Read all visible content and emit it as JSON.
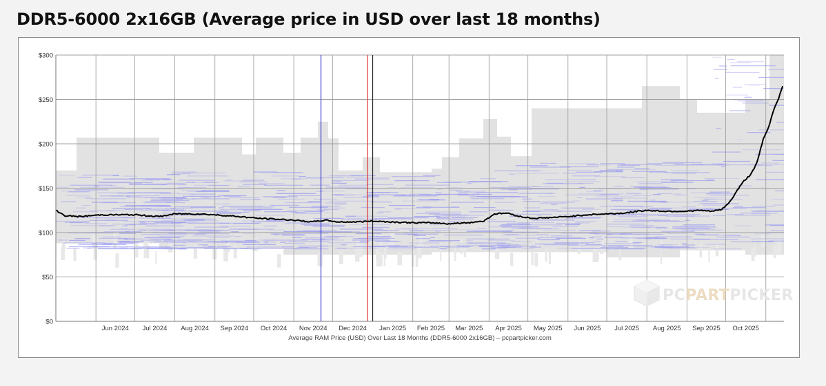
{
  "title": "DDR5-6000 2x16GB (Average price in USD over last 18 months)",
  "chart_data": {
    "type": "line",
    "title": "DDR5-6000 2x16GB (Average price in USD over last 18 months)",
    "xlabel": "Average RAM Price (USD) Over Last 18 Months (DDR5-6000 2x16GB) – pcpartpicker.com",
    "ylabel": "",
    "ylim": [
      0,
      300
    ],
    "y_ticks": [
      "$0",
      "$50",
      "$100",
      "$150",
      "$200",
      "$250",
      "$300"
    ],
    "x_ticks": [
      "Jun 2024",
      "Jul 2024",
      "Aug 2024",
      "Sep 2024",
      "Oct 2024",
      "Nov 2024",
      "Dec 2024",
      "Jan 2025",
      "Feb 2025",
      "Mar 2025",
      "Apr 2025",
      "May 2025",
      "Jun 2025",
      "Jul 2025",
      "Aug 2025",
      "Sep 2025",
      "Oct 2025"
    ],
    "grid": true,
    "vertical_markers": [
      {
        "x": "2024-11-22",
        "color": "#3a3ad0"
      },
      {
        "x": "2024-12-28",
        "color": "#e03030"
      },
      {
        "x": "2025-01-01",
        "color": "#222222"
      }
    ],
    "series": [
      {
        "color": "#000000",
        "x": [
          "2024-05-01",
          "2024-05-08",
          "2024-05-20",
          "2024-06-05",
          "2024-06-20",
          "2024-07-01",
          "2024-07-20",
          "2024-08-01",
          "2024-08-20",
          "2024-09-01",
          "2024-09-20",
          "2024-10-05",
          "2024-10-20",
          "2024-11-01",
          "2024-11-15",
          "2024-11-25",
          "2024-12-05",
          "2024-12-20",
          "2025-01-01",
          "2025-01-15",
          "2025-02-01",
          "2025-02-15",
          "2025-03-01",
          "2025-03-15",
          "2025-03-28",
          "2025-04-05",
          "2025-04-15",
          "2025-04-25",
          "2025-05-05",
          "2025-05-20",
          "2025-06-01",
          "2025-06-15",
          "2025-07-01",
          "2025-07-15",
          "2025-07-25",
          "2025-08-01",
          "2025-08-15",
          "2025-09-01",
          "2025-09-10",
          "2025-09-20",
          "2025-09-28",
          "2025-10-05",
          "2025-10-10",
          "2025-10-15",
          "2025-10-20",
          "2025-10-25",
          "2025-10-30",
          "2025-11-03",
          "2025-11-07",
          "2025-11-11",
          "2025-11-14"
        ],
        "values": [
          125,
          119,
          118,
          120,
          120,
          120,
          118,
          121,
          121,
          120,
          118,
          116,
          115,
          114,
          112,
          114,
          112,
          112,
          113,
          112,
          111,
          111,
          110,
          111,
          113,
          121,
          122,
          118,
          116,
          117,
          118,
          120,
          121,
          122,
          124,
          125,
          124,
          124,
          125,
          124,
          126,
          136,
          148,
          158,
          165,
          178,
          205,
          218,
          238,
          252,
          265
        ]
      }
    ],
    "price_range_band": {
      "color": "#e2e2e2",
      "lines_color": "#9b9bf0"
    }
  },
  "watermark": {
    "text_a": "PC",
    "text_b": "PART",
    "text_c": "PICKER"
  }
}
